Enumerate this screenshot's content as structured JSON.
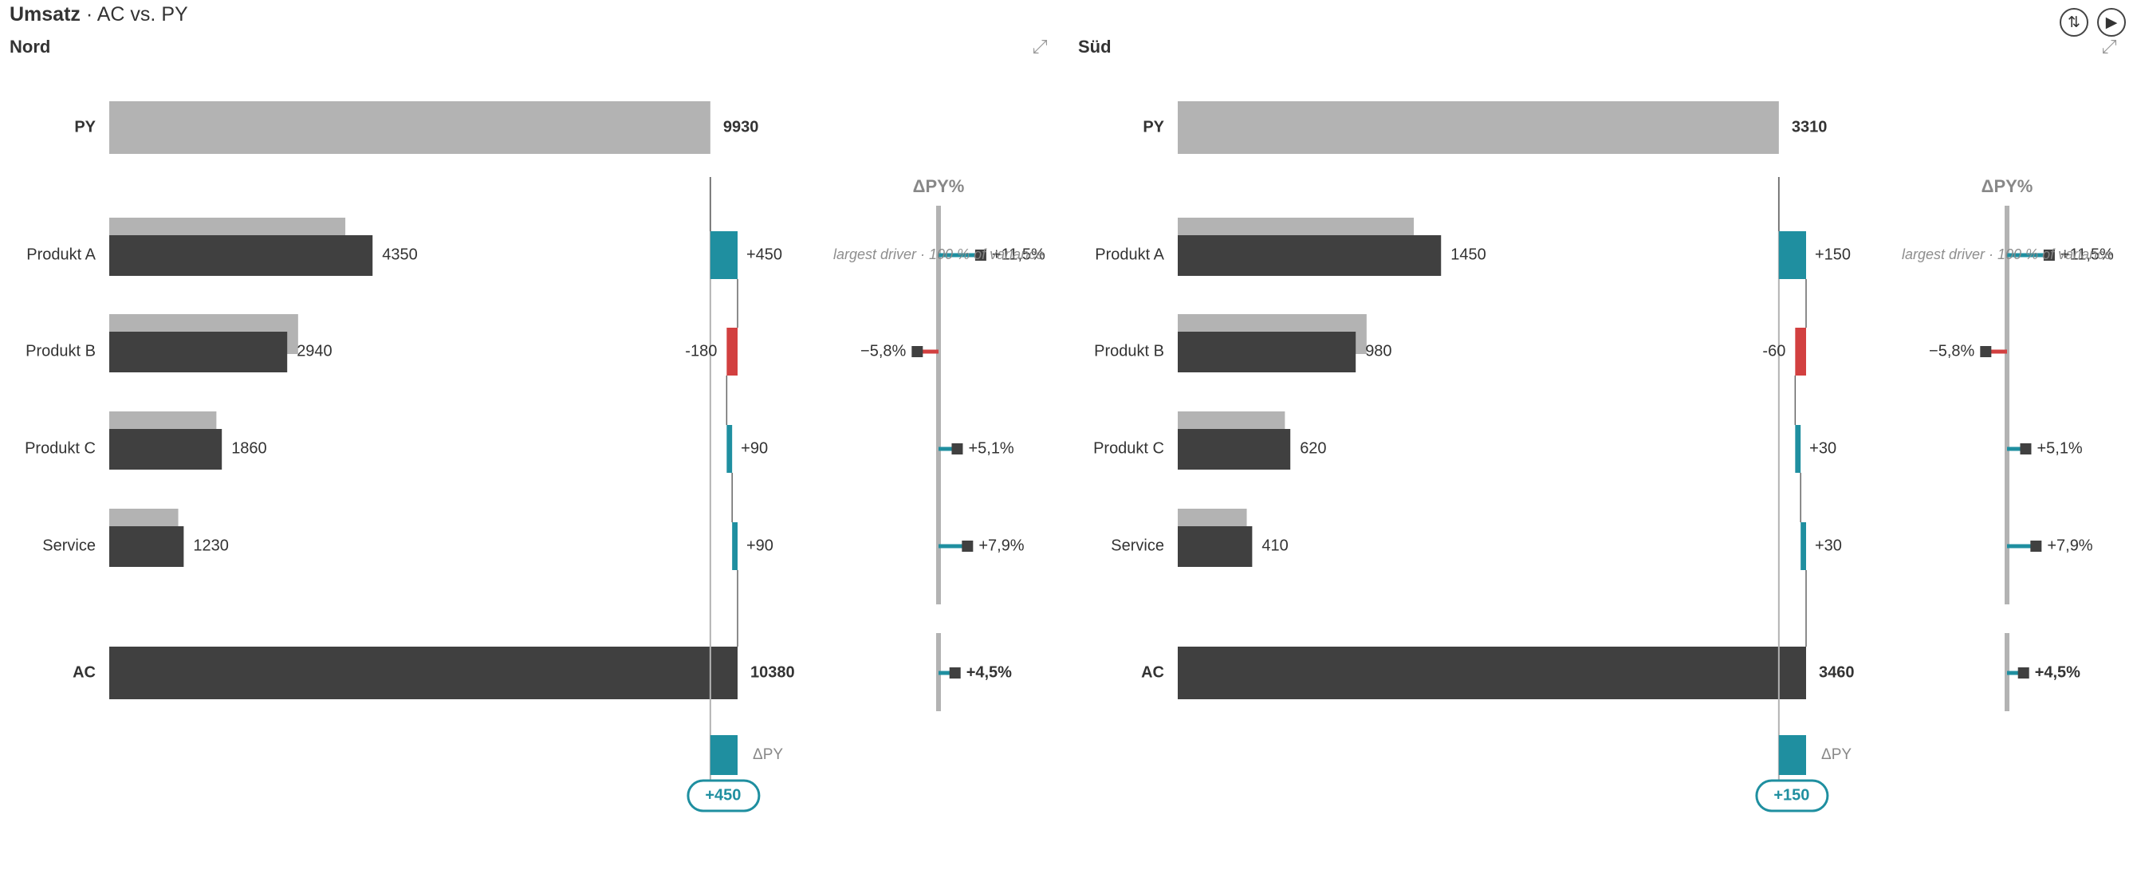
{
  "header": {
    "title_bold": "Umsatz",
    "title_rest": " · AC vs. PY",
    "sort_icon": "⇅",
    "play_icon": "▶"
  },
  "colors": {
    "py": "#b3b3b3",
    "ac": "#404040",
    "positive": "#1f8fa0",
    "negative": "#d24040",
    "axis": "#b3b3b3",
    "muted": "#888888"
  },
  "chart_data": [
    {
      "type": "bar",
      "title": "Nord",
      "categories": [
        "Produkt A",
        "Produkt B",
        "Produkt C",
        "Service"
      ],
      "ac_values": [
        4350,
        2940,
        1860,
        1230
      ],
      "py_values": [
        3900,
        3120,
        1770,
        1140
      ],
      "total_labels": [
        "PY",
        "AC"
      ],
      "py_total": 9930,
      "ac_total": 10380,
      "delta_values": [
        450,
        -180,
        90,
        90
      ],
      "delta_labels": [
        "+450",
        "-180",
        "+90",
        "+90"
      ],
      "delta_total": 450,
      "delta_total_label": "+450",
      "delta_axis_label": "ΔPY",
      "pct_title": "ΔPY%",
      "pct_values": [
        11.5,
        -5.8,
        5.1,
        7.9
      ],
      "pct_labels": [
        "+11,5%",
        "−5,8%",
        "+5,1%",
        "+7,9%"
      ],
      "pct_total": 4.5,
      "pct_total_label": "+4,5%",
      "annotation": "largest driver · 100 % of variance",
      "expand_icon": "⤢"
    },
    {
      "type": "bar",
      "title": "Süd",
      "categories": [
        "Produkt A",
        "Produkt B",
        "Produkt C",
        "Service"
      ],
      "ac_values": [
        1450,
        980,
        620,
        410
      ],
      "py_values": [
        1300,
        1040,
        590,
        380
      ],
      "total_labels": [
        "PY",
        "AC"
      ],
      "py_total": 3310,
      "ac_total": 3460,
      "delta_values": [
        150,
        -60,
        30,
        30
      ],
      "delta_labels": [
        "+150",
        "-60",
        "+30",
        "+30"
      ],
      "delta_total": 150,
      "delta_total_label": "+150",
      "delta_axis_label": "ΔPY",
      "pct_title": "ΔPY%",
      "pct_values": [
        11.5,
        -5.8,
        5.1,
        7.9
      ],
      "pct_labels": [
        "+11,5%",
        "−5,8%",
        "+5,1%",
        "+7,9%"
      ],
      "pct_total": 4.5,
      "pct_total_label": "+4,5%",
      "annotation": "largest driver · 100 % of variance",
      "expand_icon": "⤢"
    }
  ]
}
